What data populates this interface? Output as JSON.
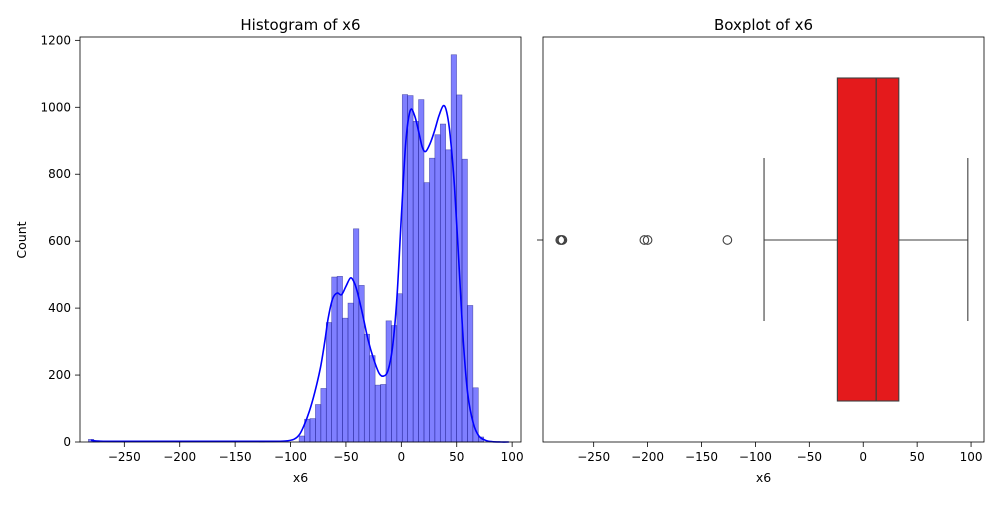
{
  "chart_data": [
    {
      "type": "histogram",
      "title": "Histogram of x6",
      "xlabel": "x6",
      "ylabel": "Count",
      "xlim": [
        -290,
        108
      ],
      "ylim": [
        0,
        1210
      ],
      "xticks": [
        -250,
        -200,
        -150,
        -100,
        -50,
        0,
        50,
        100
      ],
      "yticks": [
        0,
        200,
        400,
        600,
        800,
        1000,
        1200
      ],
      "bar_color": "#0000ff",
      "bin_width": 4.9,
      "bins": [
        {
          "x": -280.0,
          "count": 8
        },
        {
          "x": -275.0,
          "count": 4
        },
        {
          "x": -201.0,
          "count": 3
        },
        {
          "x": -126.0,
          "count": 2
        },
        {
          "x": -89.8,
          "count": 18
        },
        {
          "x": -84.9,
          "count": 68
        },
        {
          "x": -80.0,
          "count": 70
        },
        {
          "x": -75.1,
          "count": 112
        },
        {
          "x": -70.2,
          "count": 160
        },
        {
          "x": -65.3,
          "count": 357
        },
        {
          "x": -60.4,
          "count": 493
        },
        {
          "x": -55.5,
          "count": 495
        },
        {
          "x": -50.6,
          "count": 370
        },
        {
          "x": -45.7,
          "count": 415
        },
        {
          "x": -40.8,
          "count": 637
        },
        {
          "x": -35.9,
          "count": 468
        },
        {
          "x": -31.0,
          "count": 322
        },
        {
          "x": -26.1,
          "count": 258
        },
        {
          "x": -21.2,
          "count": 170
        },
        {
          "x": -16.3,
          "count": 172
        },
        {
          "x": -11.4,
          "count": 362
        },
        {
          "x": -6.5,
          "count": 348
        },
        {
          "x": -1.6,
          "count": 443
        },
        {
          "x": 3.3,
          "count": 1038
        },
        {
          "x": 8.2,
          "count": 1035
        },
        {
          "x": 13.1,
          "count": 958
        },
        {
          "x": 18.0,
          "count": 1023
        },
        {
          "x": 22.9,
          "count": 775
        },
        {
          "x": 27.8,
          "count": 848
        },
        {
          "x": 32.7,
          "count": 918
        },
        {
          "x": 37.6,
          "count": 950
        },
        {
          "x": 42.5,
          "count": 873
        },
        {
          "x": 47.4,
          "count": 1157
        },
        {
          "x": 52.3,
          "count": 1037
        },
        {
          "x": 57.2,
          "count": 845
        },
        {
          "x": 62.1,
          "count": 408
        },
        {
          "x": 67.0,
          "count": 162
        },
        {
          "x": 71.9,
          "count": 15
        }
      ],
      "kde": {
        "color": "#0000ff",
        "x": [
          -280,
          -275,
          -260,
          -240,
          -220,
          -200,
          -180,
          -160,
          -140,
          -120,
          -105,
          -97,
          -92,
          -88,
          -83,
          -78,
          -73,
          -69,
          -66,
          -62,
          -58,
          -54,
          -50,
          -46,
          -43,
          -40,
          -35,
          -30,
          -25,
          -20,
          -16,
          -12,
          -8,
          -4,
          0,
          4,
          8,
          12,
          16,
          19,
          22,
          26,
          30,
          34,
          38,
          41,
          44,
          48,
          52,
          56,
          60,
          65,
          70,
          76,
          82,
          90,
          97
        ],
        "y": [
          5,
          3,
          2,
          2,
          2,
          2,
          2,
          2,
          2,
          2,
          3,
          8,
          22,
          48,
          92,
          150,
          222,
          302,
          370,
          428,
          445,
          440,
          465,
          490,
          480,
          452,
          382,
          305,
          248,
          205,
          197,
          214,
          282,
          430,
          672,
          895,
          990,
          975,
          922,
          880,
          868,
          892,
          930,
          975,
          1005,
          985,
          918,
          762,
          532,
          298,
          142,
          55,
          18,
          5,
          1,
          0,
          0
        ]
      }
    },
    {
      "type": "boxplot",
      "title": "Boxplot of x6",
      "xlabel": "x6",
      "xlim": [
        -297,
        112
      ],
      "xticks": [
        -250,
        -200,
        -150,
        -100,
        -50,
        0,
        50,
        100
      ],
      "box_color": "#ff0000",
      "whisker_low": -92,
      "q1": -24,
      "median": 12,
      "q3": 33,
      "whisker_high": 97,
      "outliers": [
        -280,
        -281,
        -279,
        -200,
        -203,
        -126
      ]
    }
  ]
}
